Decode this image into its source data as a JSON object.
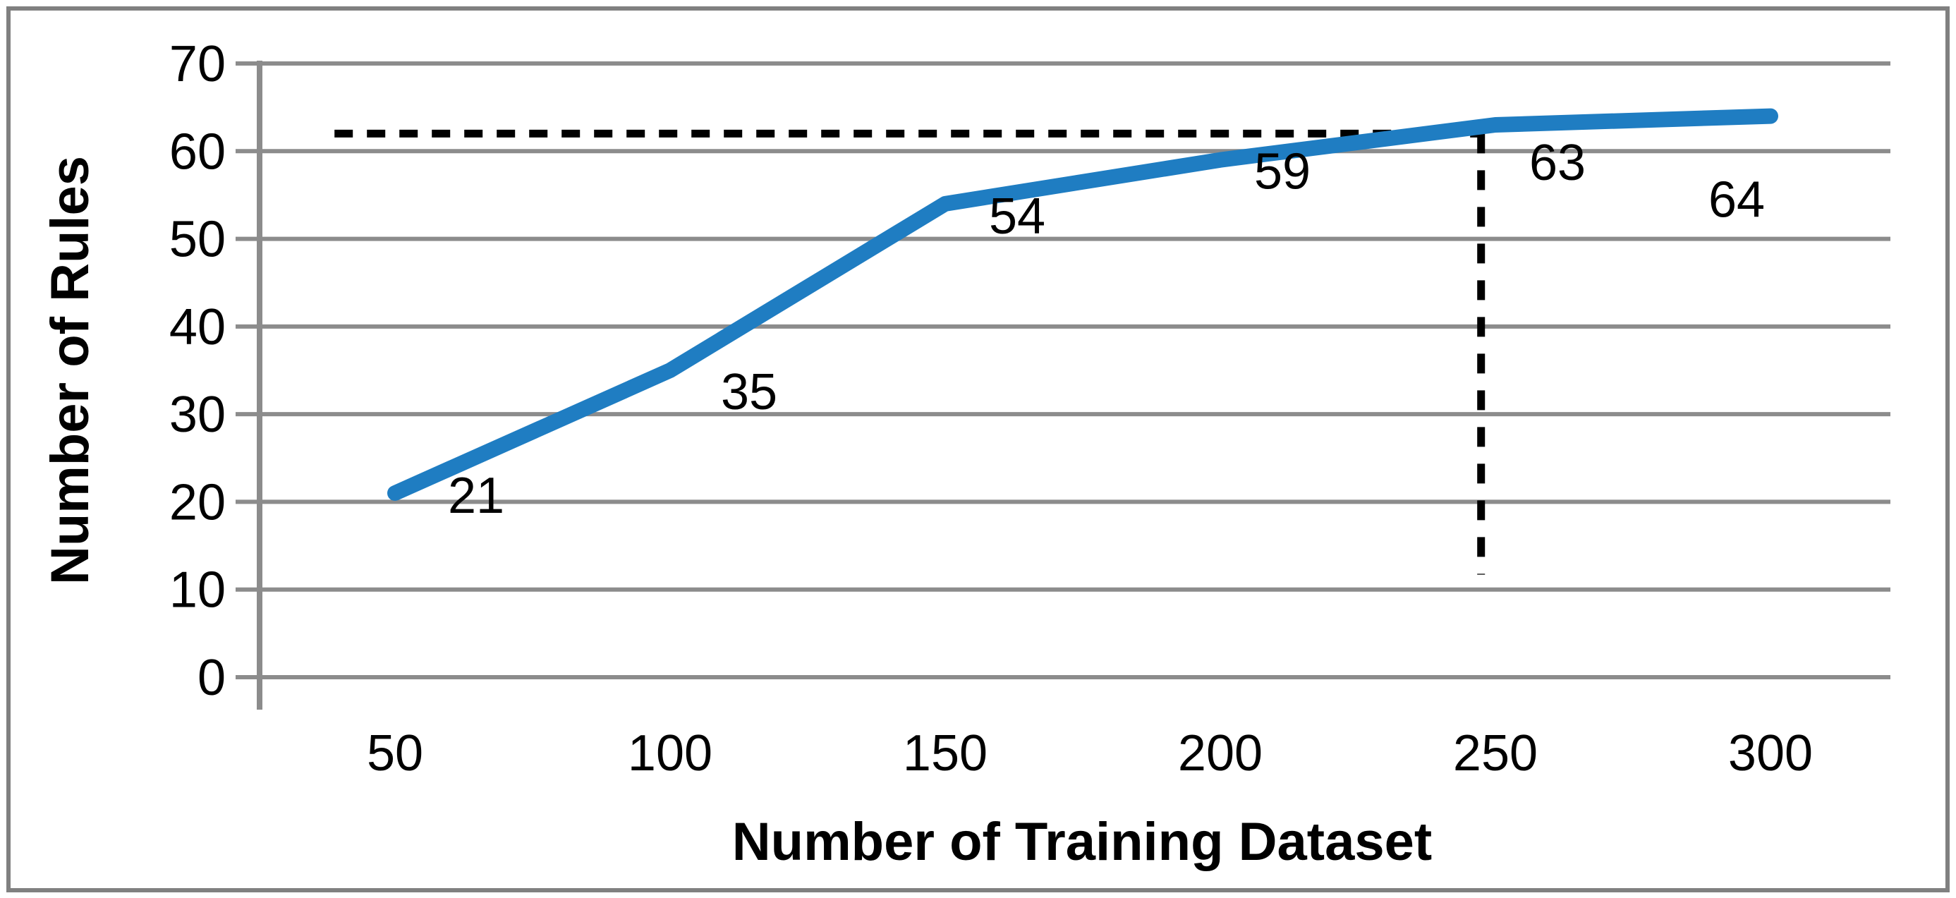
{
  "figure": {
    "background": "#ffffff",
    "border_color": "#808080"
  },
  "chart_data": {
    "type": "line",
    "title": "",
    "x": [
      50,
      100,
      150,
      200,
      250,
      300
    ],
    "values": [
      21,
      35,
      54,
      59,
      63,
      64
    ],
    "data_labels": [
      "21",
      "35",
      "54",
      "59",
      "63",
      "64"
    ],
    "xticklabels": [
      "50",
      "100",
      "150",
      "200",
      "250",
      "300"
    ],
    "yticks": [
      0,
      10,
      20,
      30,
      40,
      50,
      60,
      70
    ],
    "ylim": [
      0,
      70
    ],
    "xlabel": "Number of Training Dataset",
    "ylabel": "Number of Rules",
    "grid": "horizontal-only",
    "legend": "none",
    "line_color": "#1f7dc2",
    "grid_color": "#8c8c8c",
    "text_color": "#000000",
    "annotation_color": "#000000",
    "annotations": [
      {
        "type": "dashed-horizontal-line",
        "y": 62.0,
        "x_from": 39,
        "x_to": 247.4
      },
      {
        "type": "dashed-vertical-line",
        "x": 247.4,
        "y_from": 62.0,
        "y_to": 11.7
      }
    ]
  }
}
